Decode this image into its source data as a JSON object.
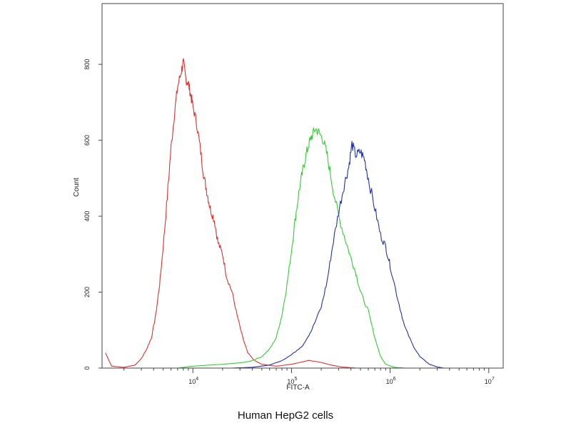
{
  "caption": "Human HepG2 cells",
  "chart_data": {
    "type": "line",
    "title": "",
    "xlabel": "FITC-A",
    "ylabel": "Count",
    "xscale": "log",
    "xlim": [
      1200,
      14000000
    ],
    "ylim": [
      0,
      960
    ],
    "grid": false,
    "x_ticks": [
      {
        "value": 10000,
        "base": "10",
        "exp": "4"
      },
      {
        "value": 100000,
        "base": "10",
        "exp": "5"
      },
      {
        "value": 1000000,
        "base": "10",
        "exp": "6"
      },
      {
        "value": 10000000,
        "base": "10",
        "exp": "7"
      }
    ],
    "y_ticks": [
      {
        "value": 0,
        "label": "0"
      },
      {
        "value": 200,
        "label": "200"
      },
      {
        "value": 400,
        "label": "400"
      },
      {
        "value": 600,
        "label": "600"
      },
      {
        "value": 800,
        "label": "800"
      }
    ],
    "series": [
      {
        "color": "#e03030",
        "points": [
          [
            1300,
            40
          ],
          [
            1500,
            5
          ],
          [
            2000,
            2
          ],
          [
            2600,
            8
          ],
          [
            3000,
            25
          ],
          [
            3400,
            50
          ],
          [
            3800,
            80
          ],
          [
            4200,
            140
          ],
          [
            4600,
            220
          ],
          [
            5000,
            320
          ],
          [
            5500,
            450
          ],
          [
            6000,
            580
          ],
          [
            6500,
            670
          ],
          [
            7000,
            740
          ],
          [
            7600,
            780
          ],
          [
            8000,
            805
          ],
          [
            8500,
            760
          ],
          [
            9000,
            750
          ],
          [
            9500,
            720
          ],
          [
            10000,
            690
          ],
          [
            11000,
            640
          ],
          [
            12000,
            570
          ],
          [
            13000,
            500
          ],
          [
            14000,
            460
          ],
          [
            15000,
            420
          ],
          [
            16500,
            390
          ],
          [
            18000,
            330
          ],
          [
            20000,
            300
          ],
          [
            22000,
            240
          ],
          [
            25000,
            200
          ],
          [
            28000,
            140
          ],
          [
            32000,
            80
          ],
          [
            36000,
            40
          ],
          [
            42000,
            20
          ],
          [
            50000,
            10
          ],
          [
            70000,
            5
          ],
          [
            100000,
            10
          ],
          [
            150000,
            20
          ],
          [
            200000,
            15
          ],
          [
            250000,
            8
          ],
          [
            320000,
            3
          ],
          [
            450000,
            0
          ]
        ]
      },
      {
        "color": "#33cc33",
        "points": [
          [
            7000,
            0
          ],
          [
            10000,
            5
          ],
          [
            15000,
            8
          ],
          [
            20000,
            10
          ],
          [
            25000,
            12
          ],
          [
            30000,
            14
          ],
          [
            35000,
            16
          ],
          [
            40000,
            20
          ],
          [
            50000,
            30
          ],
          [
            60000,
            50
          ],
          [
            70000,
            80
          ],
          [
            80000,
            140
          ],
          [
            90000,
            220
          ],
          [
            100000,
            310
          ],
          [
            110000,
            400
          ],
          [
            120000,
            470
          ],
          [
            130000,
            520
          ],
          [
            140000,
            560
          ],
          [
            150000,
            590
          ],
          [
            160000,
            610
          ],
          [
            175000,
            630
          ],
          [
            190000,
            620
          ],
          [
            210000,
            600
          ],
          [
            230000,
            560
          ],
          [
            260000,
            480
          ],
          [
            300000,
            400
          ],
          [
            350000,
            340
          ],
          [
            400000,
            290
          ],
          [
            450000,
            250
          ],
          [
            500000,
            200
          ],
          [
            600000,
            150
          ],
          [
            700000,
            80
          ],
          [
            800000,
            30
          ],
          [
            900000,
            10
          ],
          [
            1100000,
            2
          ],
          [
            1400000,
            0
          ]
        ]
      },
      {
        "color": "#2233aa",
        "points": [
          [
            25000,
            0
          ],
          [
            40000,
            2
          ],
          [
            60000,
            8
          ],
          [
            80000,
            20
          ],
          [
            100000,
            35
          ],
          [
            130000,
            60
          ],
          [
            160000,
            100
          ],
          [
            200000,
            160
          ],
          [
            230000,
            230
          ],
          [
            260000,
            320
          ],
          [
            300000,
            410
          ],
          [
            340000,
            480
          ],
          [
            380000,
            530
          ],
          [
            410000,
            590
          ],
          [
            450000,
            560
          ],
          [
            500000,
            570
          ],
          [
            550000,
            550
          ],
          [
            600000,
            500
          ],
          [
            700000,
            420
          ],
          [
            800000,
            350
          ],
          [
            900000,
            320
          ],
          [
            1000000,
            270
          ],
          [
            1200000,
            180
          ],
          [
            1400000,
            110
          ],
          [
            1700000,
            60
          ],
          [
            2000000,
            30
          ],
          [
            2500000,
            10
          ],
          [
            3000000,
            3
          ],
          [
            3500000,
            0
          ]
        ]
      }
    ]
  }
}
